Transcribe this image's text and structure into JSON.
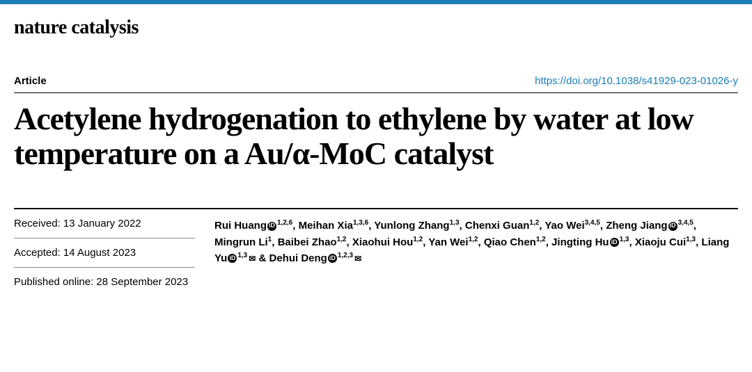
{
  "journal": "nature catalysis",
  "article_type": "Article",
  "doi": "https://doi.org/10.1038/s41929-023-01026-y",
  "title": "Acetylene hydrogenation to ethylene by water at low temperature on a Au/α-MoC catalyst",
  "dates": {
    "received": "Received: 13 January 2022",
    "accepted": "Accepted: 14 August 2023",
    "published": "Published online: 28 September 2023"
  },
  "authors": [
    {
      "name": "Rui Huang",
      "orcid": true,
      "aff": "1,2,6",
      "corresponding": false
    },
    {
      "name": "Meihan Xia",
      "orcid": false,
      "aff": "1,3,6",
      "corresponding": false
    },
    {
      "name": "Yunlong Zhang",
      "orcid": false,
      "aff": "1,3",
      "corresponding": false
    },
    {
      "name": "Chenxi Guan",
      "orcid": false,
      "aff": "1,2",
      "corresponding": false
    },
    {
      "name": "Yao Wei",
      "orcid": false,
      "aff": "3,4,5",
      "corresponding": false
    },
    {
      "name": "Zheng Jiang",
      "orcid": true,
      "aff": "3,4,5",
      "corresponding": false
    },
    {
      "name": "Mingrun Li",
      "orcid": false,
      "aff": "1",
      "corresponding": false
    },
    {
      "name": "Baibei Zhao",
      "orcid": false,
      "aff": "1,2",
      "corresponding": false
    },
    {
      "name": "Xiaohui Hou",
      "orcid": false,
      "aff": "1,2",
      "corresponding": false
    },
    {
      "name": "Yan Wei",
      "orcid": false,
      "aff": "1,2",
      "corresponding": false
    },
    {
      "name": "Qiao Chen",
      "orcid": false,
      "aff": "1,2",
      "corresponding": false
    },
    {
      "name": "Jingting Hu",
      "orcid": true,
      "aff": "1,3",
      "corresponding": false
    },
    {
      "name": "Xiaoju Cui",
      "orcid": false,
      "aff": "1,3",
      "corresponding": false
    },
    {
      "name": "Liang Yu",
      "orcid": true,
      "aff": "1,3",
      "corresponding": true
    },
    {
      "name": "Dehui Deng",
      "orcid": true,
      "aff": "1,2,3",
      "corresponding": true
    }
  ],
  "orcid_glyph": "iD",
  "envelope_glyph": "✉",
  "colors": {
    "brand_blue": "#1a7db6",
    "text": "#000000",
    "bg": "#ffffff",
    "divider_light": "#888888"
  }
}
